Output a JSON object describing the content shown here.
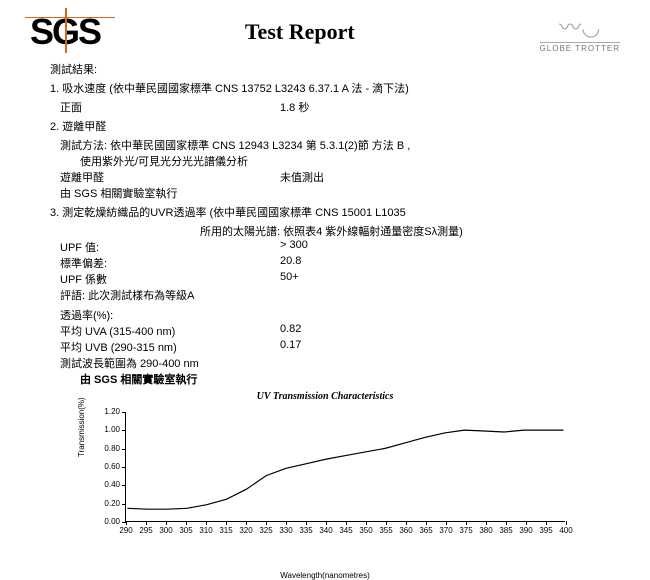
{
  "header": {
    "logo": "SGS",
    "title": "Test Report",
    "brand_top": "⌒",
    "brand_text": "GLOBE   TROTTER"
  },
  "results_label": "測試結果:",
  "item1": {
    "title": "1. 吸水速度 (依中華民國國家標準 CNS 13752 L3243 6.37.1 A 法 - 滴下法)",
    "face": "正面",
    "value": "1.8 秒"
  },
  "item2": {
    "title": "2. 遊離甲醛",
    "method_label": "測試方法:",
    "method": "依中華民國國家標準 CNS 12943 L3234 第 5.3.1(2)節 方法 B ,",
    "method2": "使用紫外光/可見光分光光譜儀分析",
    "param": "遊離甲醛",
    "result": "未值測出",
    "lab": "由 SGS 相關實驗室執行"
  },
  "item3": {
    "title": "3. 測定乾燥紡織品的UVR透過率 (依中華民國國家標準 CNS 15001 L1035",
    "subtitle": "所用的太陽光譜: 依照表4 紫外線輻射通量密度Sλ測量)",
    "upf_label": "UPF 值:",
    "upf_val": "> 300",
    "sd_label": "標準偏差:",
    "sd_val": "20.8",
    "coef_label": "UPF 係數",
    "coef_val": "50+",
    "rating": "評語: 此次測試樣布為等級A",
    "trans_label": "透過率(%):",
    "uva_label": "平均 UVA (315-400 nm)",
    "uva_val": "0.82",
    "uvb_label": "平均 UVB (290-315 nm)",
    "uvb_val": "0.17",
    "range": "測試波長範圍為 290-400 nm",
    "lab": "由 SGS 相關實驗室執行"
  },
  "chart": {
    "title": "UV Transmission Characteristics",
    "ylabel": "Transmission(%)",
    "xlabel": "Wavelength(nanometres)",
    "xmin": 290,
    "xmax": 400,
    "xstep": 5,
    "ymin": 0.0,
    "ymax": 1.2,
    "ystep": 0.2,
    "line_color": "#000000",
    "data": [
      [
        290,
        0.14
      ],
      [
        295,
        0.13
      ],
      [
        300,
        0.13
      ],
      [
        305,
        0.14
      ],
      [
        310,
        0.18
      ],
      [
        315,
        0.24
      ],
      [
        320,
        0.35
      ],
      [
        325,
        0.5
      ],
      [
        330,
        0.58
      ],
      [
        335,
        0.63
      ],
      [
        340,
        0.68
      ],
      [
        345,
        0.72
      ],
      [
        350,
        0.76
      ],
      [
        355,
        0.8
      ],
      [
        360,
        0.86
      ],
      [
        365,
        0.92
      ],
      [
        370,
        0.97
      ],
      [
        375,
        1.0
      ],
      [
        380,
        0.99
      ],
      [
        385,
        0.98
      ],
      [
        390,
        1.0
      ],
      [
        395,
        1.0
      ],
      [
        400,
        1.0
      ]
    ]
  }
}
